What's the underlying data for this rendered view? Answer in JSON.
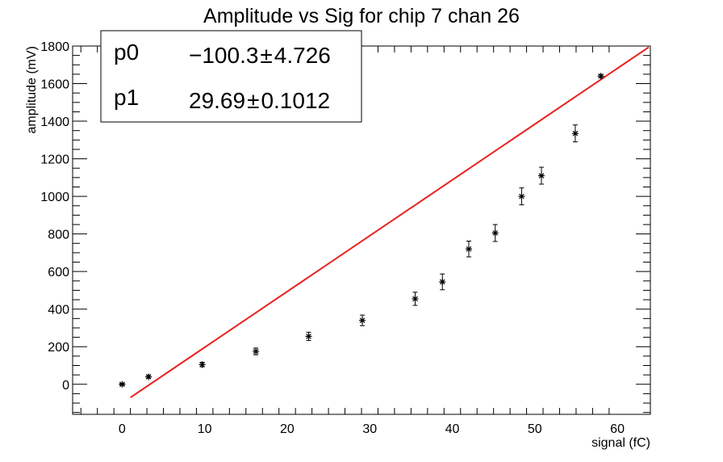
{
  "chart_data": {
    "type": "scatter",
    "title": "Amplitude vs Sig for chip 7 chan 26",
    "xlabel": "signal (fC)",
    "ylabel": "amplitude (mV)",
    "xlim": [
      -6,
      64
    ],
    "ylim": [
      -160,
      1800
    ],
    "x_ticks": [
      0,
      10,
      20,
      30,
      40,
      50,
      60
    ],
    "y_ticks": [
      0,
      200,
      400,
      600,
      800,
      1000,
      1200,
      1400,
      1600,
      1800
    ],
    "grid": false,
    "series": [
      {
        "x": [
          0,
          3.2,
          9.7,
          16.2,
          22.6,
          29.1,
          35.5,
          38.8,
          42.0,
          45.2,
          48.4,
          50.8,
          54.9,
          58.0
        ],
        "y": [
          0,
          40,
          105,
          175,
          255,
          340,
          455,
          545,
          720,
          805,
          1000,
          1110,
          1335,
          1640
        ],
        "yerr": [
          5,
          8,
          12,
          18,
          22,
          28,
          35,
          42,
          42,
          45,
          45,
          45,
          45,
          8
        ]
      }
    ],
    "fit": {
      "color": "#e8211d",
      "function": "p0 + p1*x",
      "x_range": [
        1.0,
        63.8
      ],
      "parameters": [
        {
          "name": "p0",
          "value": "−100.3",
          "error": "4.726",
          "pm": "±",
          "numeric": -100.3
        },
        {
          "name": "p1",
          "value": "29.69",
          "error": "0.1012",
          "pm": "±",
          "numeric": 29.69
        }
      ]
    }
  }
}
